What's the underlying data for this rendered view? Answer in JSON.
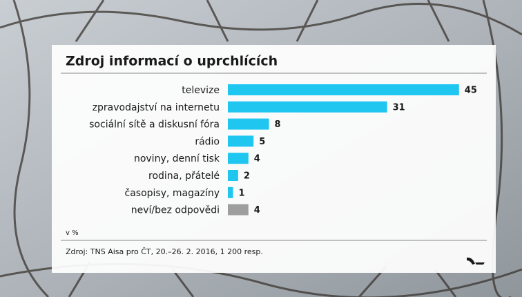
{
  "chart_data": {
    "type": "bar",
    "orientation": "horizontal",
    "title": "Zdroj informací o uprchlících",
    "categories": [
      "televize",
      "zpravodajství na internetu",
      "sociální sítě a diskusní fóra",
      "rádio",
      "noviny, denní tisk",
      "rodina, přátelé",
      "časopisy, magazíny",
      "neví/bez odpovědi"
    ],
    "values": [
      45,
      31,
      8,
      5,
      4,
      2,
      1,
      4
    ],
    "colors": [
      "#1ec6f0",
      "#1ec6f0",
      "#1ec6f0",
      "#1ec6f0",
      "#1ec6f0",
      "#1ec6f0",
      "#1ec6f0",
      "#9e9e9e"
    ],
    "unit_note": "v %",
    "source": "Zdroj: TNS Aisa pro ČT, 20.–26. 2. 2016, 1 200 resp."
  }
}
